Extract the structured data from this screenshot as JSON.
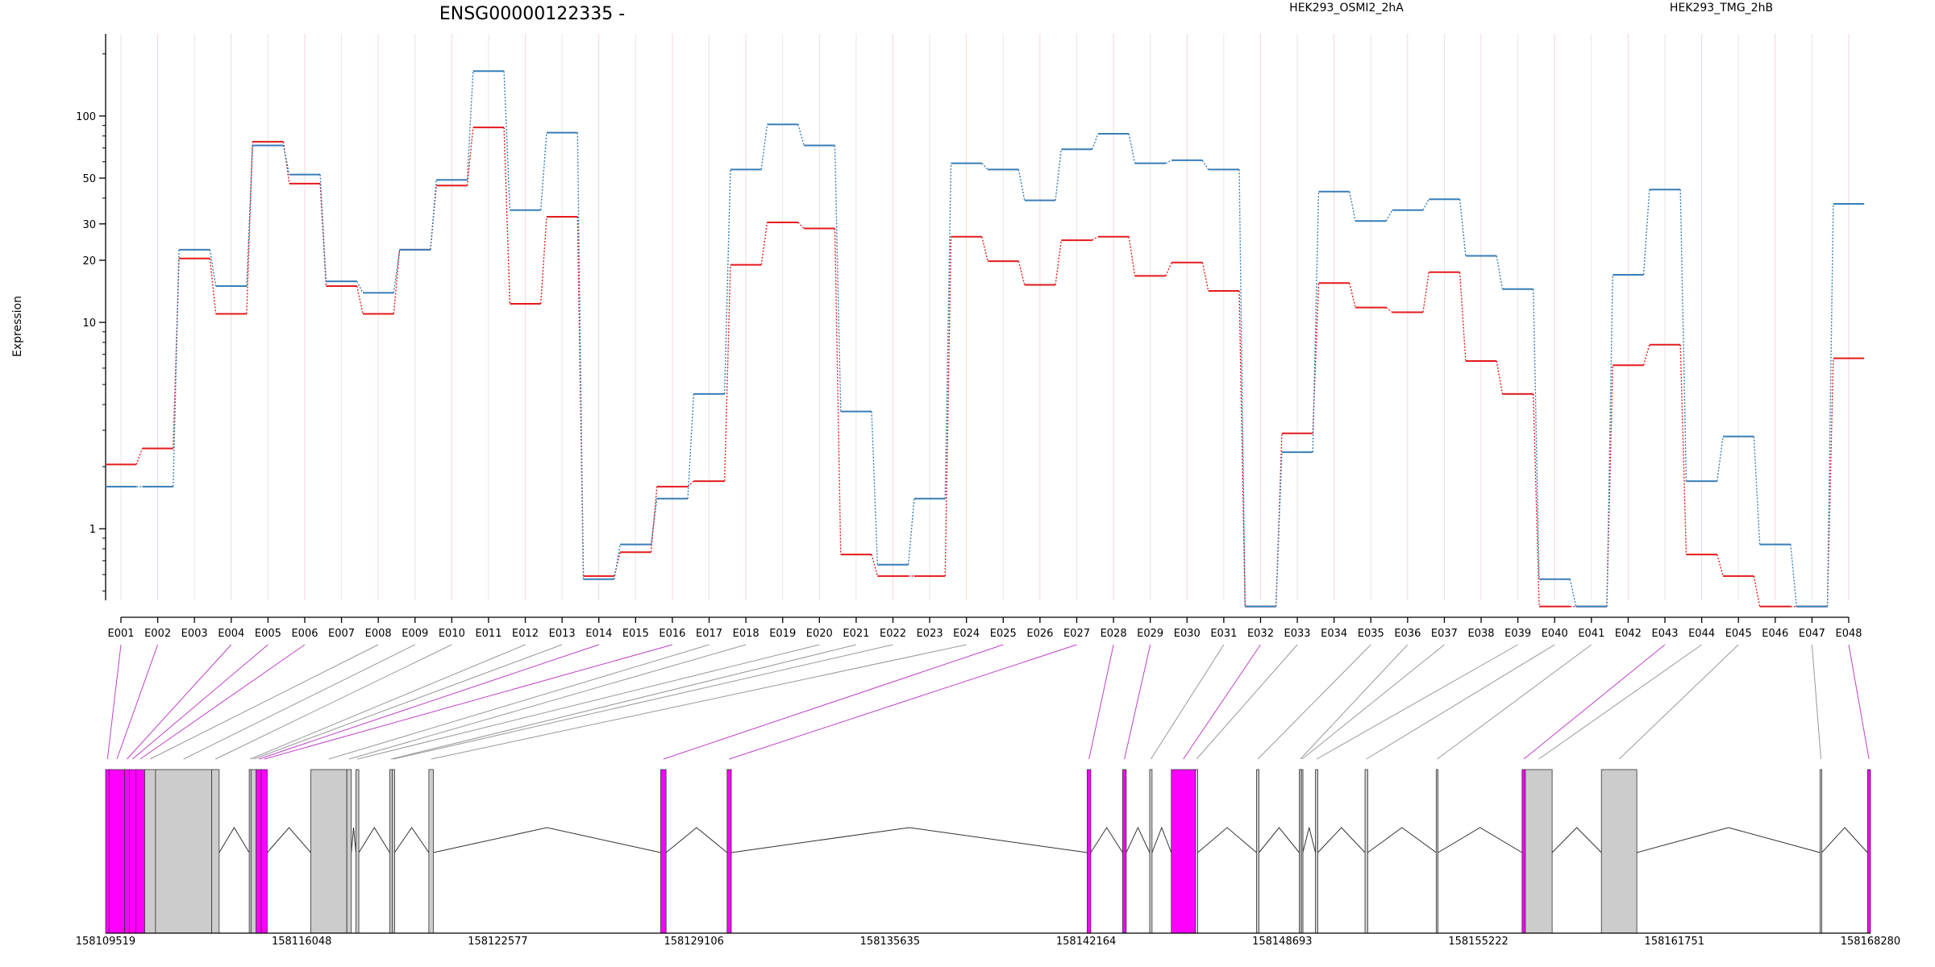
{
  "chart_data": {
    "type": "line",
    "title": "ENSG00000122335 -",
    "ylabel": "Expression",
    "yscale": "log",
    "ylim": [
      0.45,
      250
    ],
    "yticks": [
      1,
      10,
      20,
      30,
      50,
      100
    ],
    "grid": true,
    "legend_position": "top",
    "categories": [
      "E001",
      "E002",
      "E003",
      "E004",
      "E005",
      "E006",
      "E007",
      "E008",
      "E009",
      "E010",
      "E011",
      "E012",
      "E013",
      "E014",
      "E015",
      "E016",
      "E017",
      "E018",
      "E019",
      "E020",
      "E021",
      "E022",
      "E023",
      "E024",
      "E025",
      "E026",
      "E027",
      "E028",
      "E029",
      "E030",
      "E031",
      "E032",
      "E033",
      "E034",
      "E035",
      "E036",
      "E037",
      "E038",
      "E039",
      "E040",
      "E041",
      "E042",
      "E043",
      "E044",
      "E045",
      "E046",
      "E047",
      "E048"
    ],
    "series": [
      {
        "name": "HEK293_OSMI2_2hA",
        "color": "#e41a1c",
        "values": [
          2.05,
          2.45,
          20.4,
          11.0,
          75,
          47,
          15.0,
          11.0,
          22.5,
          46,
          88,
          12.3,
          32.5,
          0.59,
          0.77,
          1.6,
          1.7,
          19.0,
          30.5,
          28.5,
          0.75,
          0.59,
          0.59,
          26,
          19.8,
          15.2,
          25,
          26,
          16.8,
          19.5,
          14.2,
          0.42,
          2.9,
          15.5,
          11.8,
          11.2,
          17.5,
          6.5,
          4.5,
          0.42,
          0.42,
          6.2,
          7.8,
          0.75,
          0.59,
          0.42,
          0.42,
          6.7
        ]
      },
      {
        "name": "HEK293_TMG_2hB",
        "color": "#377eb8",
        "values": [
          1.6,
          1.6,
          22.5,
          15.0,
          72,
          52,
          15.8,
          13.9,
          22.5,
          49,
          165,
          35,
          83,
          0.57,
          0.84,
          1.4,
          4.5,
          55,
          91,
          72,
          3.7,
          0.67,
          1.4,
          59,
          55,
          39,
          69,
          82,
          59,
          61,
          55,
          0.42,
          2.35,
          43,
          31,
          35,
          39.5,
          21,
          14.5,
          0.57,
          0.42,
          17,
          44,
          1.7,
          2.8,
          0.84,
          0.42,
          37.5
        ]
      }
    ],
    "gene_model": {
      "coordinate_labels": [
        "158109519",
        "158116048",
        "158122577",
        "158129106",
        "158135635",
        "158142164",
        "158148693",
        "158155222",
        "158161751",
        "158168280"
      ],
      "genomic_range": [
        158109519,
        158168280
      ],
      "highlight_color": "#ff00ff",
      "exons": [
        {
          "id": "E001",
          "start": 158109519,
          "end": 158109640,
          "highlight": true
        },
        {
          "id": "E002",
          "start": 158109640,
          "end": 158110150,
          "highlight": true
        },
        {
          "id": "E003",
          "start": 158110150,
          "end": 158110310,
          "highlight": true
        },
        {
          "id": "E004",
          "start": 158110310,
          "end": 158110520,
          "highlight": true
        },
        {
          "id": "E005",
          "start": 158110520,
          "end": 158110820,
          "highlight": true
        },
        {
          "id": "E006",
          "start": 158110820,
          "end": 158111180,
          "highlight": false
        },
        {
          "id": "E007",
          "start": 158111180,
          "end": 158113050,
          "highlight": false
        },
        {
          "id": "E008",
          "start": 158113050,
          "end": 158113300,
          "highlight": false
        },
        {
          "id": "E009",
          "start": 158114300,
          "end": 158114360,
          "highlight": false
        },
        {
          "id": "E010",
          "start": 158114360,
          "end": 158114530,
          "highlight": false
        },
        {
          "id": "E011",
          "start": 158114530,
          "end": 158114700,
          "highlight": true
        },
        {
          "id": "E012",
          "start": 158114700,
          "end": 158114900,
          "highlight": true
        },
        {
          "id": "E013",
          "start": 158116350,
          "end": 158117550,
          "highlight": false
        },
        {
          "id": "E014",
          "start": 158117550,
          "end": 158117700,
          "highlight": false
        },
        {
          "id": "E015",
          "start": 158117850,
          "end": 158117950,
          "highlight": false
        },
        {
          "id": "E016",
          "start": 158118980,
          "end": 158119060,
          "highlight": false
        },
        {
          "id": "E017",
          "start": 158119060,
          "end": 158119140,
          "highlight": false
        },
        {
          "id": "E018",
          "start": 158120280,
          "end": 158120430,
          "highlight": false
        },
        {
          "id": "E019",
          "start": 158128000,
          "end": 158128180,
          "highlight": true
        },
        {
          "id": "E020",
          "start": 158130210,
          "end": 158130350,
          "highlight": true
        },
        {
          "id": "E021",
          "start": 158142200,
          "end": 158142320,
          "highlight": true
        },
        {
          "id": "E022",
          "start": 158143380,
          "end": 158143500,
          "highlight": true
        },
        {
          "id": "E023",
          "start": 158144280,
          "end": 158144360,
          "highlight": false
        },
        {
          "id": "E024",
          "start": 158145000,
          "end": 158145800,
          "highlight": true
        },
        {
          "id": "E025",
          "start": 158145800,
          "end": 158145880,
          "highlight": false
        },
        {
          "id": "E026",
          "start": 158147840,
          "end": 158147920,
          "highlight": false
        },
        {
          "id": "E027",
          "start": 158149260,
          "end": 158149330,
          "highlight": false
        },
        {
          "id": "E028",
          "start": 158149330,
          "end": 158149380,
          "highlight": false
        },
        {
          "id": "E029",
          "start": 158149800,
          "end": 158149880,
          "highlight": false
        },
        {
          "id": "E030",
          "start": 158151450,
          "end": 158151540,
          "highlight": false
        },
        {
          "id": "E031",
          "start": 158153820,
          "end": 158153880,
          "highlight": false
        },
        {
          "id": "E032",
          "start": 158156680,
          "end": 158156790,
          "highlight": true
        },
        {
          "id": "E033",
          "start": 158156790,
          "end": 158157680,
          "highlight": false
        },
        {
          "id": "E034",
          "start": 158159320,
          "end": 158160500,
          "highlight": false
        },
        {
          "id": "E035",
          "start": 158166600,
          "end": 158166660,
          "highlight": false
        },
        {
          "id": "E036",
          "start": 158168180,
          "end": 158168280,
          "highlight": true
        }
      ]
    }
  }
}
